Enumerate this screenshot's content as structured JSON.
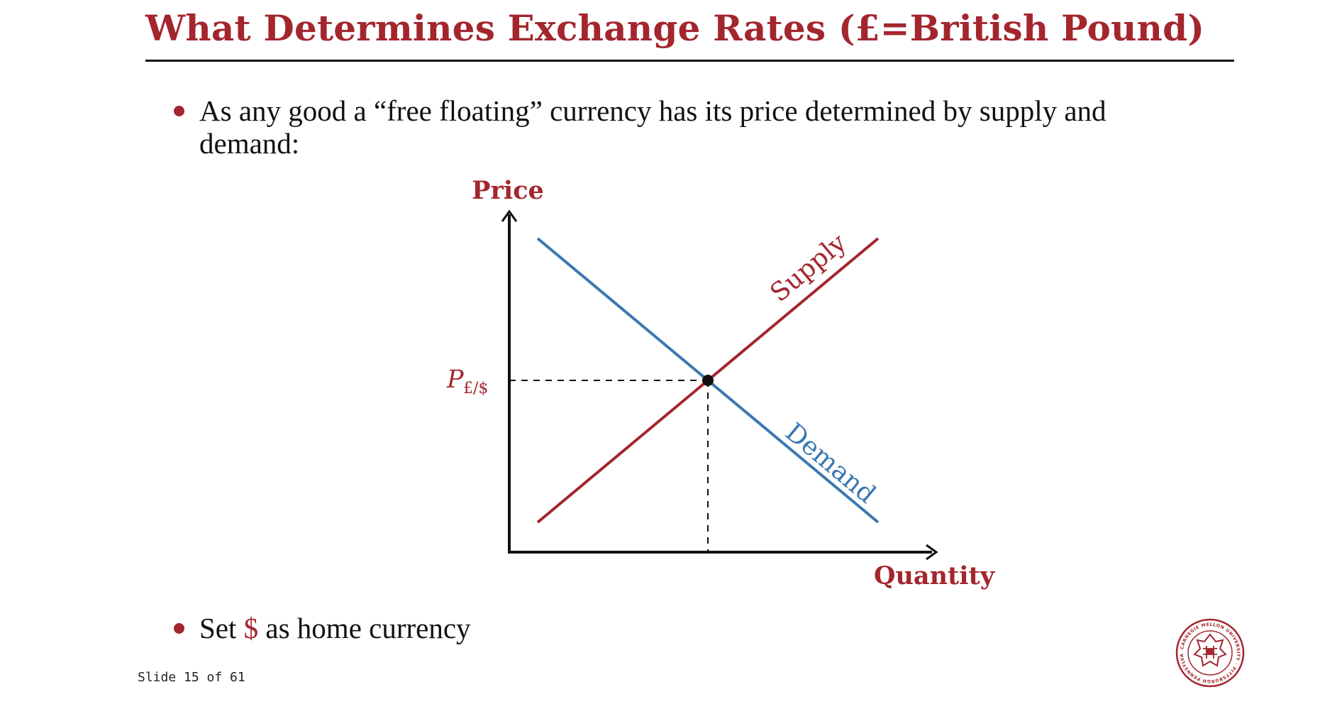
{
  "slide": {
    "title": "What Determines Exchange Rates (£=British Pound)",
    "bullets": [
      {
        "text": "As any good a “free floating” currency has its price determined by supply and demand:"
      },
      {
        "prefix": "Set ",
        "highlight": "$",
        "suffix": " as home currency"
      }
    ],
    "footer": "Slide 15 of 61"
  },
  "diagram": {
    "y_axis_label": "Price",
    "x_axis_label": "Quantity",
    "supply_label": "Supply",
    "demand_label": "Demand",
    "price_label": "P",
    "price_subscript": "£/$"
  },
  "logo": {
    "icon": "university-seal-icon",
    "text": "CARNEGIE MELLON UNIVERSITY · PITTSBURGH PENNSYLVANIA 1900"
  },
  "colors": {
    "accent": "#a3262e",
    "demand": "#3a78b0",
    "text": "#111111"
  }
}
